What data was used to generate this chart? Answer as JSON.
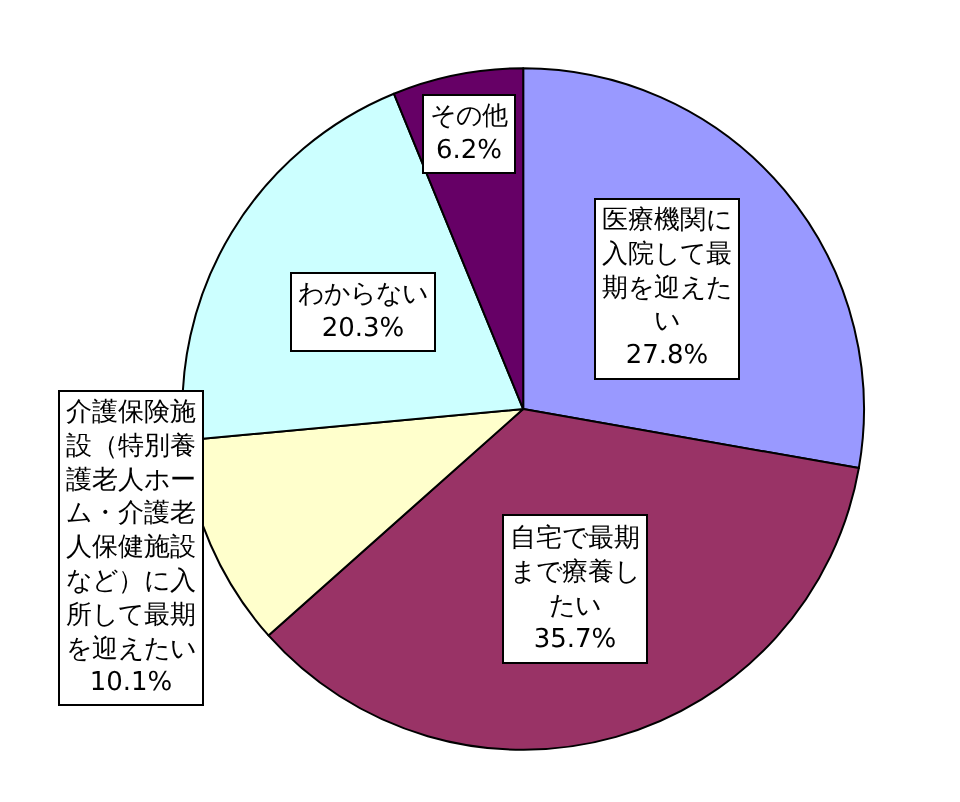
{
  "chart_data": {
    "type": "pie",
    "categories": [
      "医療機関に入院して最期を迎えたい",
      "自宅で最期まで療養したい",
      "介護保険施設（特別養護老人ホーム・介護老人保健施設など）に入所して最期を迎えたい",
      "わからない",
      "その他"
    ],
    "values": [
      27.8,
      35.7,
      10.1,
      20.3,
      6.2
    ],
    "value_labels": [
      "27.8%",
      "35.7%",
      "10.1%",
      "20.3%",
      "6.2%"
    ],
    "colors": [
      "#9999ff",
      "#993366",
      "#ffffcc",
      "#ccffff",
      "#660066"
    ],
    "legend": false
  }
}
